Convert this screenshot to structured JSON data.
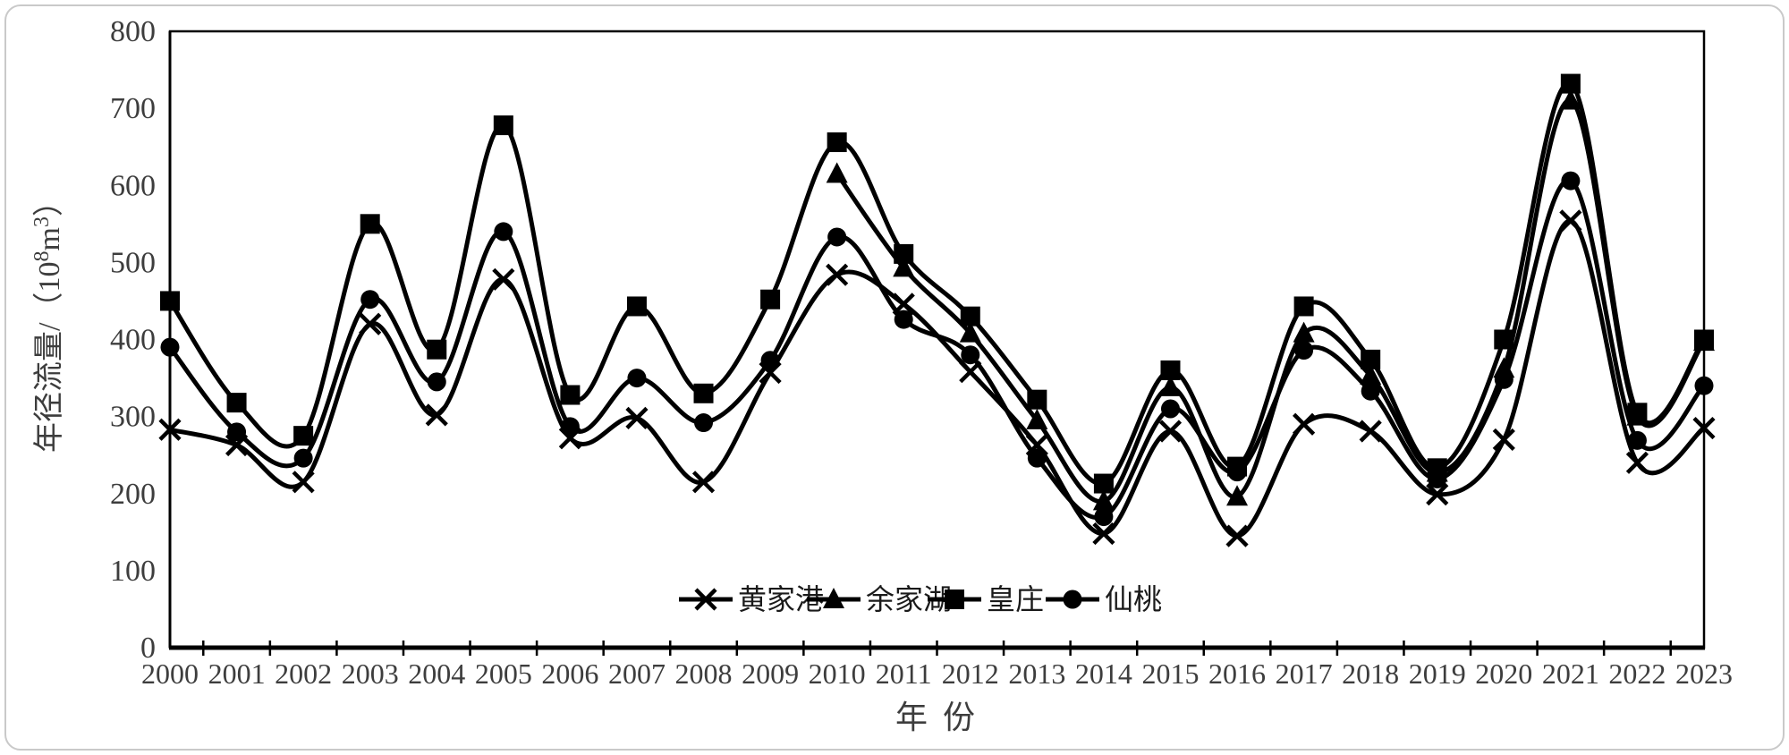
{
  "figure": {
    "background": "#ffffff",
    "border_color": "#c9c9c9",
    "axis_color": "#000000",
    "tick_label_color": "#3d3d3d"
  },
  "chart_data": {
    "type": "line",
    "title": "",
    "xlabel": "年 份",
    "ylabel": "年径流量/（10⁸m³）",
    "ylabel_parts": [
      {
        "t": "年径流量/（10"
      },
      {
        "t": "8",
        "sup": true
      },
      {
        "t": "m"
      },
      {
        "t": "3",
        "sup": true
      },
      {
        "t": "）"
      }
    ],
    "x": [
      2000,
      2001,
      2002,
      2003,
      2004,
      2005,
      2006,
      2007,
      2008,
      2009,
      2010,
      2011,
      2012,
      2013,
      2014,
      2015,
      2016,
      2017,
      2018,
      2019,
      2020,
      2021,
      2022,
      2023
    ],
    "ylim": [
      0,
      800
    ],
    "yticks": [
      0,
      100,
      200,
      300,
      400,
      500,
      600,
      700,
      800
    ],
    "grid": false,
    "smooth": true,
    "line_color": "#000000",
    "legend_position": "inside-bottom-center",
    "series": [
      {
        "name": "黄家港",
        "marker": "x",
        "values": [
          283,
          263,
          215,
          420,
          302,
          478,
          272,
          298,
          215,
          357,
          484,
          446,
          358,
          263,
          148,
          281,
          145,
          290,
          281,
          199,
          270,
          554,
          240,
          285
        ]
      },
      {
        "name": "余家湖",
        "marker": "triangle",
        "values": [
          null,
          null,
          null,
          null,
          null,
          null,
          null,
          null,
          null,
          null,
          615,
          493,
          408,
          295,
          190,
          338,
          196,
          408,
          353,
          227,
          362,
          710,
          300,
          397
        ]
      },
      {
        "name": "皇庄",
        "marker": "square",
        "values": [
          450,
          318,
          275,
          550,
          387,
          678,
          328,
          443,
          330,
          452,
          656,
          511,
          430,
          322,
          213,
          360,
          235,
          443,
          374,
          233,
          400,
          732,
          305,
          400
        ]
      },
      {
        "name": "仙桃",
        "marker": "circle",
        "values": [
          390,
          280,
          246,
          452,
          345,
          540,
          287,
          350,
          292,
          373,
          533,
          426,
          380,
          246,
          170,
          310,
          228,
          386,
          333,
          219,
          348,
          606,
          269,
          340
        ]
      }
    ]
  }
}
